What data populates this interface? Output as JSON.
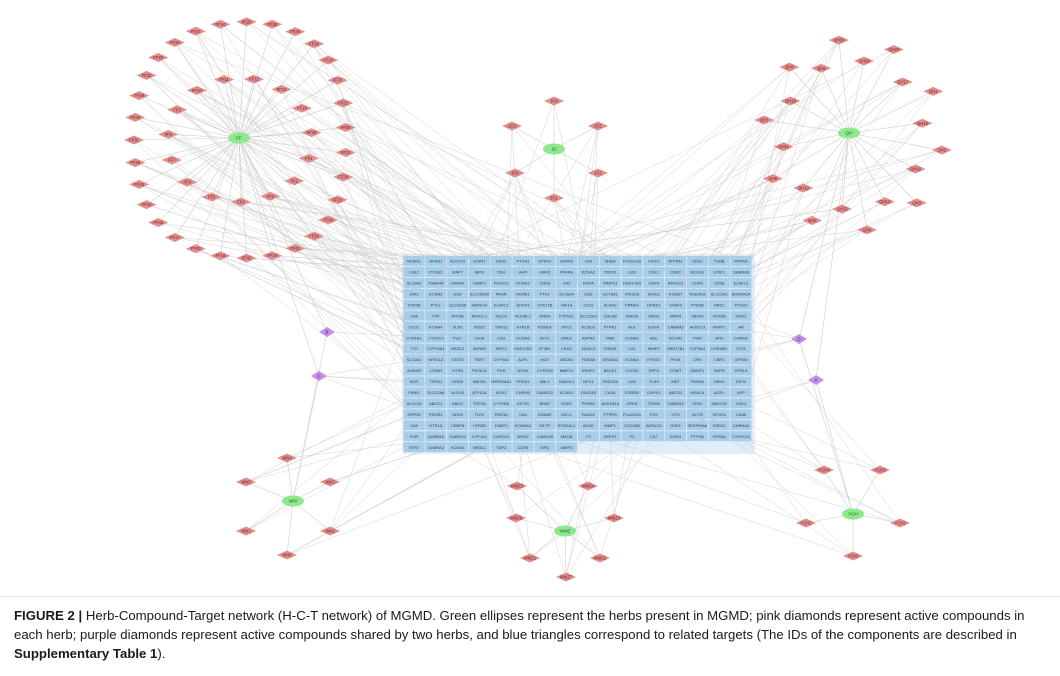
{
  "figure": {
    "label": "FIGURE 2 |",
    "caption_main": " Herb-Compound-Target network (H-C-T network) of MGMD. Green ellipses represent the herbs present in MGMD; pink diamonds represent active compounds in each herb; purple diamonds represent active compounds shared by two herbs, and blue triangles correspond to related targets (The IDs of the components are described in ",
    "caption_bold": "Supplementary Table 1",
    "caption_end": ")."
  },
  "colors": {
    "herb": "#8ee88e",
    "compound": "#e08e8e",
    "shared": "#c58ee8",
    "target": "#a8cde8",
    "edge": "#cfcfcf"
  },
  "herbs": [
    {
      "id": "FF",
      "label": "FF"
    },
    {
      "id": "JC",
      "label": "JC"
    },
    {
      "id": "QH",
      "label": "QH"
    },
    {
      "id": "WN",
      "label": "WN"
    },
    {
      "id": "WM",
      "label": "WMZ"
    },
    {
      "id": "YCH",
      "label": "YCH"
    }
  ],
  "shared_compounds": [
    "B",
    "C",
    "D",
    "A"
  ],
  "compounds": {
    "FF": [
      "FF31",
      "FF30",
      "FF29",
      "FF32",
      "FF28",
      "FF33",
      "FF27",
      "FF34",
      "FF26",
      "FF35",
      "FF25",
      "FF36",
      "FF24",
      "FF37",
      "FF23",
      "FF38",
      "FF22",
      "FF39",
      "FF21",
      "FF40",
      "FF20",
      "FF41",
      "FF19",
      "FF42",
      "FF18",
      "FF43",
      "FF17",
      "FF44",
      "FF16",
      "FF45",
      "FF46",
      "FF1",
      "FF2",
      "FF3",
      "FF4",
      "FF5",
      "FF6",
      "FF7",
      "FF8",
      "FF9",
      "FF10",
      "FF11",
      "FF12",
      "FF13",
      "FF14",
      "FF15"
    ],
    "JC": [
      "JC4",
      "JC3",
      "JC5",
      "JC6",
      "JC2",
      "JC1"
    ],
    "QH": [
      "QH19",
      "QH18",
      "QH20",
      "QH17",
      "QH1",
      "QH16",
      "QH2",
      "QH15",
      "QH3",
      "QH14",
      "QH4",
      "QH13",
      "QH5",
      "QH12",
      "QH6",
      "QH11",
      "QH7",
      "QH10",
      "QH8",
      "QH9"
    ],
    "WN": [
      "WN4",
      "WN5",
      "WN3",
      "WN1",
      "WN2",
      "WN6"
    ],
    "WM": [
      "WMZ5",
      "WMZ4",
      "WMZ6",
      "WMZ3",
      "WMZ1",
      "WMZ2",
      "WMZ7"
    ],
    "YCH": [
      "YCH4",
      "YCH3",
      "YCH1",
      "YCH2",
      "YCH5"
    ]
  },
  "targets": [
    "NCAM1",
    "NFKB1",
    "ALOX15",
    "SOAT1",
    "EZH2",
    "PTGS1",
    "GPER1",
    "HSPA5",
    "JUN",
    "SHBG",
    "PLA2G1B",
    "CISD1",
    "ATP5A1",
    "CDS2",
    "TUBB",
    "PPARA",
    "CA12",
    "PTGS2",
    "MAPT",
    "MPG",
    "XDH",
    "AHR",
    "GRK6",
    "PPARA",
    "KCNA2",
    "TRPV1",
    "CA2",
    "CDK1",
    "CNR2",
    "NCOA1",
    "STAT1",
    "GABRA6",
    "SLC6A2",
    "TUBA4A",
    "CHRM1",
    "HSBP1",
    "PIK3CG",
    "KCNA3",
    "CDK8",
    "CA2",
    "RXRA",
    "MMP13",
    "HSD17B3",
    "CDK4",
    "AKR1C2",
    "CDK6",
    "CD38",
    "ELAVL3",
    "JAK2",
    "KCNN1",
    "GSD",
    "SLC25A20",
    "PAHR",
    "NOAK1",
    "PTK2",
    "SLC6A4",
    "CBS",
    "UCT3A1",
    "PIK3CB",
    "IGHG1",
    "KCNA7",
    "TAS2R31",
    "SLC22A1",
    "ADORA2A",
    "TOP2B",
    "PYCL",
    "SLC22A6",
    "MAPK14",
    "ELAVL2",
    "EPHX1",
    "STK17B",
    "HIF1A",
    "CA11",
    "ALDH2",
    "PPARG",
    "DPRK1",
    "SOAT2",
    "PTK2B",
    "DRD1",
    "PTGS2",
    "CA6",
    "TYK",
    "ATP5B",
    "AKR1C1",
    "NQO2",
    "RUVBL2",
    "DRD4",
    "PTPN11",
    "SLC22A3",
    "CDK3B",
    "MAOA",
    "DRD3",
    "MMP9",
    "TBXA2",
    "HTR3A",
    "DRD2",
    "GLO1",
    "KCNH4",
    "XLR2",
    "NOS2",
    "TNKS2",
    "HTR1B",
    "KDM1A",
    "XPO1",
    "KCND3",
    "PTPN1",
    "ALK",
    "EGFR",
    "CABRA5",
    "AKR1C3",
    "PARP1",
    "AR",
    "CYP1B1",
    "CYP2C9",
    "PLIC",
    "CA14",
    "CA3",
    "KCNA6",
    "AKT1",
    "DRD2",
    "AVPR2",
    "PAM",
    "CCNA2",
    "ADL",
    "NCOA2",
    "PGR",
    "ATR",
    "CHRM2",
    "TTR",
    "CYP19A1",
    "NR3C2",
    "ADRB2",
    "SIRT2",
    "HSD17B2",
    "SF3B1",
    "LRAS",
    "HDAC3",
    "CREB1",
    "CA1",
    "MMP2",
    "HSD17B1",
    "CYP3A4",
    "CHRNB2",
    "FLT3",
    "SLC2A1",
    "NFE2L2",
    "STAT3",
    "TERT",
    "CYP3A2",
    "ALPL",
    "HCK",
    "ABCB1",
    "FDEAB",
    "SRD5A1",
    "KCNA4",
    "HTR2C",
    "PKN1",
    "CRK",
    "CBR1",
    "GPR84",
    "AURKB",
    "LTB4R",
    "HTR6",
    "PIK3CA",
    "PGS",
    "NOX4",
    "CYP2C8",
    "MMP12",
    "ERAP1",
    "BACE1",
    "CXCR1",
    "DPP4",
    "COMT",
    "DNMT1",
    "DHFR",
    "HTR1A",
    "KDR",
    "TRPA1",
    "DRD5",
    "ABCB1",
    "HSP90AA1",
    "PRSS1",
    "ABL1",
    "KANSL1",
    "NPY4",
    "PDE10A",
    "CA3",
    "TLR9",
    "MET",
    "PDE5A",
    "HRH1",
    "EIF3I",
    "PINK1",
    "SLC22A6",
    "ALOX5",
    "ATP12A",
    "NOX2",
    "CHRM2",
    "GABRG2",
    "KCNA1",
    "CDK2A3",
    "CA5A",
    "ESRRB",
    "DAPK1",
    "ABCG2",
    "HDAC6",
    "ACPL",
    "APP",
    "ALOX15",
    "ABCC2",
    "ABCG",
    "TOP2A",
    "CYP2D6",
    "IGF1R",
    "BRAF",
    "ESR2",
    "PPARD",
    "AKR1B10",
    "GPER",
    "TRIM5",
    "GABRA2",
    "CES1",
    "MMCCR",
    "CDK2",
    "GPR35",
    "PIK3R1",
    "NEK6",
    "TLR2",
    "PDE3A",
    "CA4",
    "KDM4E",
    "MCL1",
    "RAD52",
    "PTPRS",
    "PLA2G2A",
    "FOS",
    "GTS",
    "ACTB",
    "VEGFA",
    "CA5B",
    "CA9",
    "HTR1A",
    "CEBPB",
    "HTR2B",
    "FABP3",
    "KCNMA1",
    "MTTP",
    "ST6GAL1",
    "ACHE",
    "MMP1",
    "CDC25B",
    "AKR1C4",
    "GSR1",
    "SERPINA6",
    "ESR10",
    "CHRNA4",
    "PGR",
    "GABRA3",
    "GABRG2",
    "CYP1A1",
    "CAPDH1",
    "NR3I2",
    "CAMK2B",
    "MAOB",
    "F3",
    "DPEP1",
    "F2",
    "CA7",
    "EGR4",
    "PTPN6",
    "HTR5A",
    "CYP2C19",
    "HTR7",
    "GABRA4",
    "KCNN2",
    "NR3C1",
    "TDP2",
    "CCR4",
    "MPO",
    "MMP3"
  ]
}
